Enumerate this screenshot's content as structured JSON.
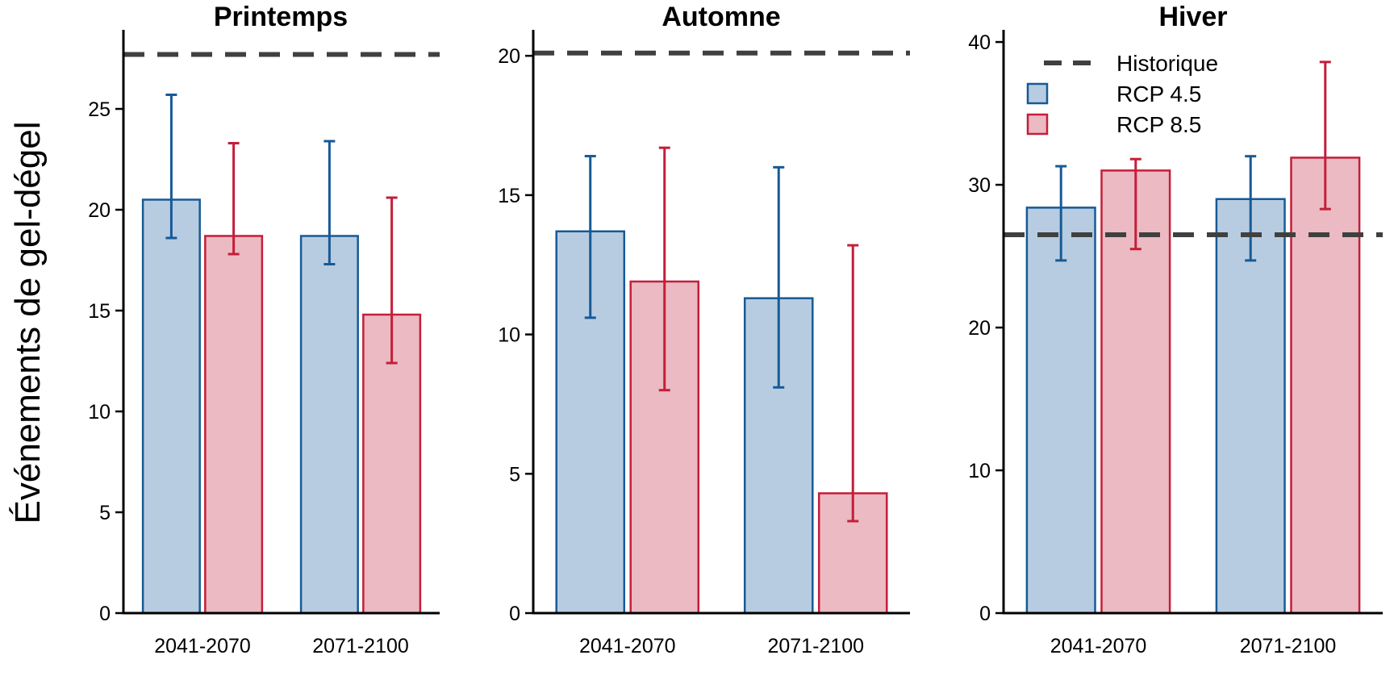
{
  "colors": {
    "rcp45_fill": "#b8cce1",
    "rcp45_stroke": "#165a96",
    "rcp85_fill": "#ebbac2",
    "rcp85_stroke": "#c41e3a",
    "historique": "#404040",
    "axis": "#000000"
  },
  "chart_data": [
    {
      "type": "bar",
      "title": "Printemps",
      "categories": [
        "2041-2070",
        "2071-2100"
      ],
      "ylim": [
        0,
        28.6
      ],
      "yticks": [
        0,
        5,
        10,
        15,
        20,
        25
      ],
      "historique": 27.7,
      "series": [
        {
          "name": "RCP 4.5",
          "values": [
            20.5,
            18.7
          ],
          "err_low": [
            18.6,
            17.3
          ],
          "err_high": [
            25.7,
            23.4
          ]
        },
        {
          "name": "RCP 8.5",
          "values": [
            18.7,
            14.8
          ],
          "err_low": [
            17.8,
            12.4
          ],
          "err_high": [
            23.3,
            20.6
          ]
        }
      ]
    },
    {
      "type": "bar",
      "title": "Automne",
      "categories": [
        "2041-2070",
        "2071-2100"
      ],
      "ylim": [
        0,
        20.7
      ],
      "yticks": [
        0,
        5,
        10,
        15,
        20
      ],
      "historique": 20.1,
      "series": [
        {
          "name": "RCP 4.5",
          "values": [
            13.7,
            11.3
          ],
          "err_low": [
            10.6,
            8.1
          ],
          "err_high": [
            16.4,
            16.0
          ]
        },
        {
          "name": "RCP 8.5",
          "values": [
            11.9,
            4.3
          ],
          "err_low": [
            8.0,
            3.3
          ],
          "err_high": [
            16.7,
            13.2
          ]
        }
      ]
    },
    {
      "type": "bar",
      "title": "Hiver",
      "categories": [
        "2041-2070",
        "2071-2100"
      ],
      "ylim": [
        0,
        40.4
      ],
      "yticks": [
        0,
        10,
        20,
        30,
        40
      ],
      "historique": 26.5,
      "series": [
        {
          "name": "RCP 4.5",
          "values": [
            28.4,
            29.0
          ],
          "err_low": [
            24.7,
            24.7
          ],
          "err_high": [
            31.3,
            32.0
          ]
        },
        {
          "name": "RCP 8.5",
          "values": [
            31.0,
            31.9
          ],
          "err_low": [
            25.5,
            28.3
          ],
          "err_high": [
            31.8,
            38.6
          ]
        }
      ]
    }
  ],
  "ylabel": "Événements de gel-dégel",
  "legend": {
    "position": "top-left of Hiver panel",
    "items": [
      "Historique",
      "RCP 4.5",
      "RCP 8.5"
    ]
  }
}
